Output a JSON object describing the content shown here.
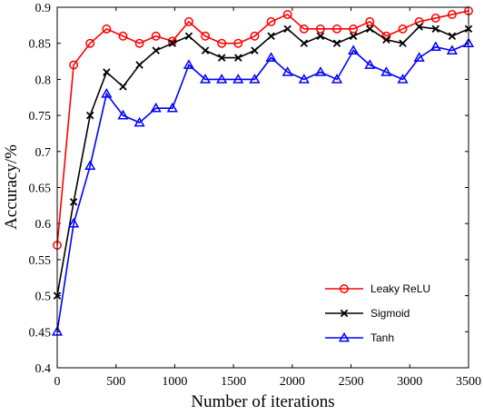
{
  "chart_data": {
    "type": "line",
    "title": "",
    "xlabel": "Number of iterations",
    "ylabel": "Accuracy/%",
    "xlim": [
      0,
      3500
    ],
    "ylim": [
      0.4,
      0.9
    ],
    "xticks": [
      0,
      500,
      1000,
      1500,
      2000,
      2500,
      3000,
      3500
    ],
    "yticks": [
      0.4,
      0.45,
      0.5,
      0.55,
      0.6,
      0.65,
      0.7,
      0.75,
      0.8,
      0.85,
      0.9
    ],
    "xtick_labels": [
      "0",
      "500",
      "1000",
      "1500",
      "2000",
      "2500",
      "3000",
      "3500"
    ],
    "ytick_labels": [
      "0.4",
      "0.45",
      "0.5",
      "0.55",
      "0.6",
      "0.65",
      "0.7",
      "0.75",
      "0.8",
      "0.85",
      "0.9"
    ],
    "grid": false,
    "legend_position": "bottom-right",
    "x": [
      0,
      140,
      280,
      420,
      560,
      700,
      840,
      980,
      1120,
      1260,
      1400,
      1540,
      1680,
      1820,
      1960,
      2100,
      2240,
      2380,
      2520,
      2660,
      2800,
      2940,
      3080,
      3220,
      3360,
      3500
    ],
    "series": [
      {
        "name": "Leaky ReLU",
        "color": "#ff0000",
        "marker": "circle",
        "values": [
          0.57,
          0.82,
          0.85,
          0.87,
          0.86,
          0.85,
          0.86,
          0.853,
          0.88,
          0.86,
          0.85,
          0.85,
          0.86,
          0.88,
          0.89,
          0.87,
          0.87,
          0.87,
          0.87,
          0.88,
          0.86,
          0.87,
          0.88,
          0.885,
          0.89,
          0.895
        ]
      },
      {
        "name": "Sigmoid",
        "color": "#000000",
        "marker": "x",
        "values": [
          0.5,
          0.63,
          0.75,
          0.81,
          0.79,
          0.82,
          0.84,
          0.85,
          0.86,
          0.84,
          0.83,
          0.83,
          0.84,
          0.86,
          0.87,
          0.85,
          0.86,
          0.85,
          0.86,
          0.87,
          0.855,
          0.85,
          0.873,
          0.87,
          0.86,
          0.87
        ]
      },
      {
        "name": "Tanh",
        "color": "#0000ff",
        "marker": "triangle",
        "values": [
          0.45,
          0.6,
          0.68,
          0.78,
          0.75,
          0.74,
          0.76,
          0.76,
          0.82,
          0.8,
          0.8,
          0.8,
          0.8,
          0.83,
          0.81,
          0.8,
          0.81,
          0.8,
          0.84,
          0.82,
          0.81,
          0.8,
          0.83,
          0.845,
          0.84,
          0.85
        ]
      }
    ]
  }
}
